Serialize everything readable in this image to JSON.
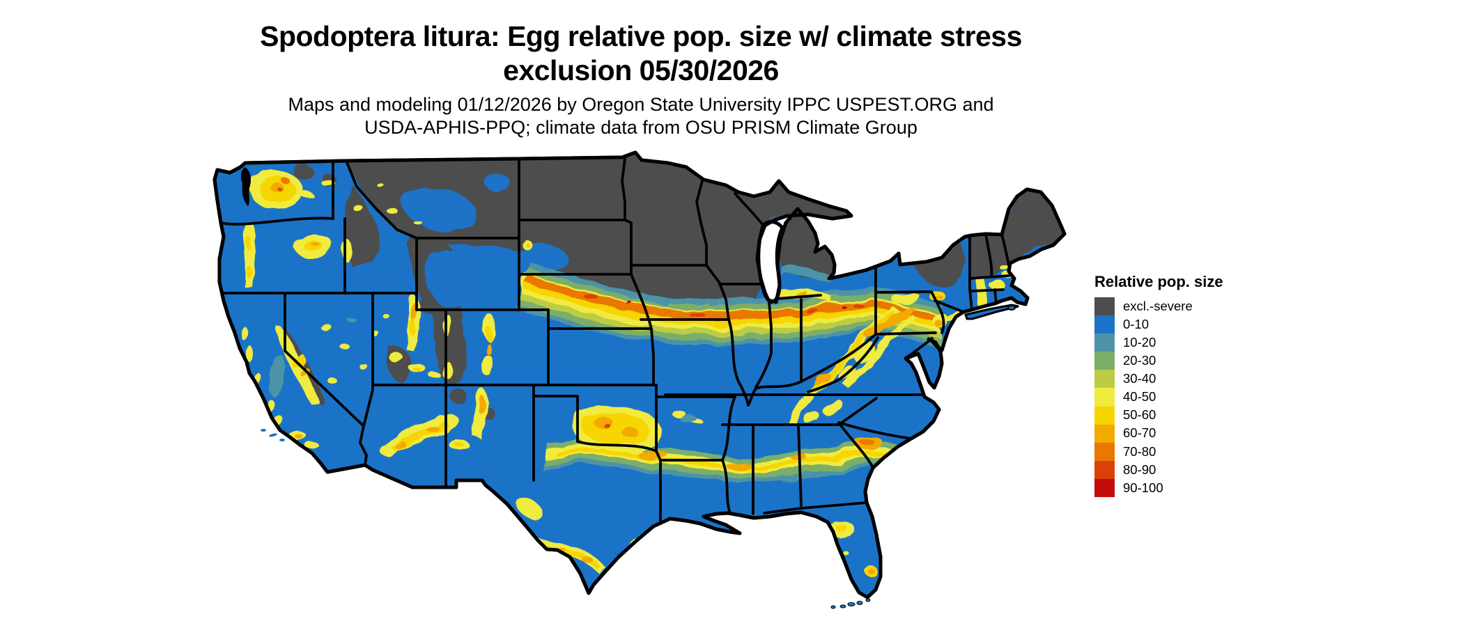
{
  "header": {
    "title_line1": "Spodoptera litura: Egg relative pop. size w/ climate stress",
    "title_line2": "exclusion 05/30/2026",
    "subtitle_line1": "Maps and modeling 01/12/2026 by Oregon State University IPPC USPEST.ORG and",
    "subtitle_line2": "USDA-APHIS-PPQ; climate data from OSU PRISM Climate Group"
  },
  "legend": {
    "title": "Relative pop. size",
    "items": [
      {
        "label": "excl.-severe",
        "color": "#4D4D4D"
      },
      {
        "label": "0-10",
        "color": "#1B73C8"
      },
      {
        "label": "10-20",
        "color": "#4E93A8"
      },
      {
        "label": "20-30",
        "color": "#7BAE69"
      },
      {
        "label": "30-40",
        "color": "#BECC44"
      },
      {
        "label": "40-50",
        "color": "#EFEB3F"
      },
      {
        "label": "50-60",
        "color": "#F7D500"
      },
      {
        "label": "60-70",
        "color": "#F2A900"
      },
      {
        "label": "70-80",
        "color": "#E97802"
      },
      {
        "label": "80-90",
        "color": "#DB4107"
      },
      {
        "label": "90-100",
        "color": "#C50B0B"
      }
    ]
  },
  "map": {
    "type": "raster choropleth of contiguous United States",
    "background_color": "#FFFFFF",
    "border_color": "#000000",
    "base_class": "0-10",
    "regions_summary": [
      {
        "area": "Montana, North Dakota, Minnesota, Wisconsin, upper Michigan, northern New England, Rockies",
        "class": "excl.-severe"
      },
      {
        "area": "most of the South, Great Plains, Pacific coast states",
        "class": "0-10"
      },
      {
        "area": "band across Nebraska-Iowa-Illinois-Indiana-Ohio along exclusion edge",
        "class": "40-80"
      },
      {
        "area": "band across north Texas through Louisiana-Mississippi-Alabama-Georgia-South Carolina",
        "class": "40-70"
      },
      {
        "area": "western mountain ranges (Cascades, Sierra Nevada, Wasatch, Mogollon, Rockies flanks), Appalachians",
        "class": "40-70"
      }
    ]
  }
}
